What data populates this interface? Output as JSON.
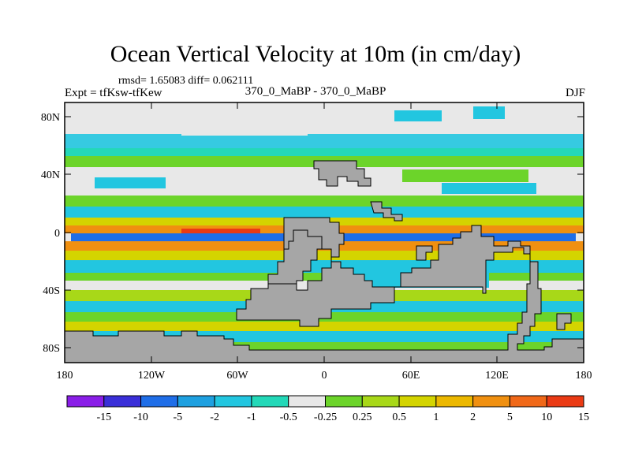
{
  "title": "Ocean Vertical Velocity at 10m (in cm/day)",
  "stats": "rmsd= 1.65083  diff= 0.062111",
  "experiment": "Expt = tfKsw-tfKew",
  "case": "370_0_MaBP - 370_0_MaBP",
  "season": "DJF",
  "y_ticks": [
    "80N",
    "40N",
    "0",
    "40S",
    "80S"
  ],
  "x_ticks": [
    "180",
    "120W",
    "60W",
    "0",
    "60E",
    "120E",
    "180"
  ],
  "colorbar": {
    "levels": [
      "-15",
      "-10",
      "-5",
      "-2",
      "-1",
      "-0.5",
      "-0.25",
      "0.25",
      "0.5",
      "1",
      "2",
      "5",
      "10",
      "15"
    ],
    "colors": [
      "#8a1ee8",
      "#3a2fd8",
      "#1f6ee8",
      "#1ea0e0",
      "#22c6e0",
      "#23d8b8",
      "#e8e8e8",
      "#6cd42a",
      "#a8d818",
      "#d4d400",
      "#ecb800",
      "#f09010",
      "#f06818",
      "#ea3a14"
    ]
  },
  "colors": {
    "land": "#a6a6a6",
    "neutral": "#e8e8e8",
    "cyan": "#22c6e0",
    "teal": "#23d8b8",
    "green": "#6cd42a",
    "lime": "#a8d818",
    "yellow": "#d4d400",
    "orange": "#f09010",
    "red": "#ea3a14",
    "blue": "#1f6ee8"
  }
}
